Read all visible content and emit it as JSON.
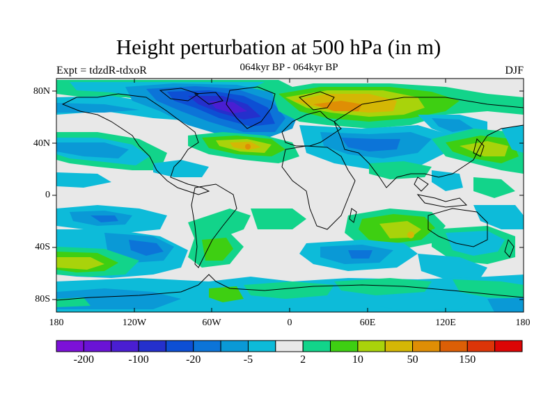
{
  "title": "Height perturbation at 500 hPa (in m)",
  "subtitle": "064kyr BP - 064kyr BP",
  "left_label": "Expt = tdzdR-tdxoR",
  "right_label": "DJF",
  "lat_labels": [
    "80N",
    "40N",
    "0",
    "40S",
    "80S"
  ],
  "lon_labels": [
    "180",
    "120W",
    "60W",
    "0",
    "60E",
    "120E",
    "180"
  ],
  "colorbar": {
    "colors": [
      "#7c11d8",
      "#6a13d6",
      "#4a1ed2",
      "#2430cc",
      "#0d4fd4",
      "#0c74d8",
      "#0a99d6",
      "#0dbbd9",
      "#e8e8e8",
      "#12d48a",
      "#3ecf12",
      "#a9d30b",
      "#d4b705",
      "#df8e05",
      "#dc5f06",
      "#dc3508",
      "#dc0505"
    ],
    "labels": [
      "-200",
      "-100",
      "-20",
      "-5",
      "2",
      "10",
      "50",
      "150"
    ]
  }
}
